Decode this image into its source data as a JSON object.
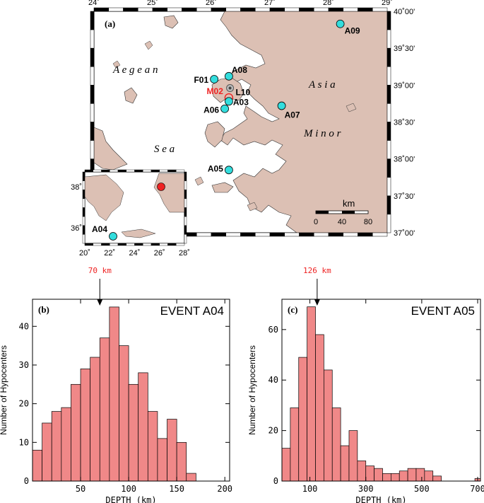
{
  "map": {
    "panel_label": "(a)",
    "lon_ticks": [
      "24˚",
      "25˚",
      "26˚",
      "27˚",
      "28˚",
      "29˚"
    ],
    "lat_ticks": [
      "40˚00'",
      "39˚30'",
      "39˚00'",
      "38˚30'",
      "38˚00'",
      "37˚30'",
      "37˚00'"
    ],
    "region_labels": {
      "aegean": "A e g e a n",
      "sea": "S e a",
      "asia": "A s i a",
      "minor": "M i n o r"
    },
    "colors": {
      "land": "#dcc0b4",
      "station": "#33dddd",
      "epicenter": "#ee2222",
      "label_red": "#ee2222"
    },
    "stations": {
      "A09": {
        "lon": 28.2,
        "lat": 39.83
      },
      "A08": {
        "lon": 26.3,
        "lat": 39.12
      },
      "F01": {
        "lon": 26.05,
        "lat": 39.08
      },
      "L10": {
        "lon": 26.32,
        "lat": 38.96
      },
      "M02": {
        "lon": 26.3,
        "lat": 38.83
      },
      "A03": {
        "lon": 26.3,
        "lat": 38.78
      },
      "A06": {
        "lon": 26.23,
        "lat": 38.68
      },
      "A07": {
        "lon": 27.2,
        "lat": 38.72
      },
      "A05": {
        "lon": 26.3,
        "lat": 37.85
      }
    },
    "scale": {
      "unit": "km",
      "ticks": [
        "0",
        "40",
        "80"
      ]
    },
    "inset": {
      "lat_ticks": [
        "38˚",
        "36˚"
      ],
      "lon_ticks": [
        "20˚",
        "22˚",
        "24˚",
        "26˚",
        "28˚"
      ],
      "station": "A04"
    }
  },
  "chart_data": [
    {
      "type": "bar",
      "panel_label": "(b)",
      "title": "EVENT  A04",
      "xlabel": "DEPTH (km)",
      "ylabel": "Number of Hypocenters",
      "bin_width": 10,
      "bin_start": 0,
      "values": [
        8,
        15,
        18,
        19,
        25,
        29,
        32,
        37,
        45,
        35,
        25,
        28,
        18,
        11,
        16,
        10,
        2,
        0,
        0,
        0,
        0,
        0,
        1,
        2,
        1,
        0,
        0,
        1
      ],
      "xlim": [
        0,
        205
      ],
      "ylim": [
        0,
        47
      ],
      "xticks": [
        50,
        100,
        150,
        200
      ],
      "yticks": [
        0,
        10,
        20,
        30,
        40
      ],
      "annotation": "70 km",
      "annotation_x": 70
    },
    {
      "type": "bar",
      "panel_label": "(c)",
      "title": "EVENT  A05",
      "xlabel": "DEPTH (km)",
      "ylabel": "Number of Hypocenters",
      "bin_width": 30,
      "bin_start": 0,
      "values": [
        13,
        29,
        49,
        69,
        58,
        44,
        29,
        14,
        20,
        8,
        6,
        5,
        3,
        3,
        4,
        5,
        5,
        4,
        2,
        0,
        0,
        0,
        0,
        1
      ],
      "xlim": [
        0,
        710
      ],
      "ylim": [
        0,
        72
      ],
      "xticks": [
        100,
        300,
        500,
        700
      ],
      "yticks": [
        0,
        20,
        40,
        60
      ],
      "annotation": "126 km",
      "annotation_x": 126
    }
  ]
}
